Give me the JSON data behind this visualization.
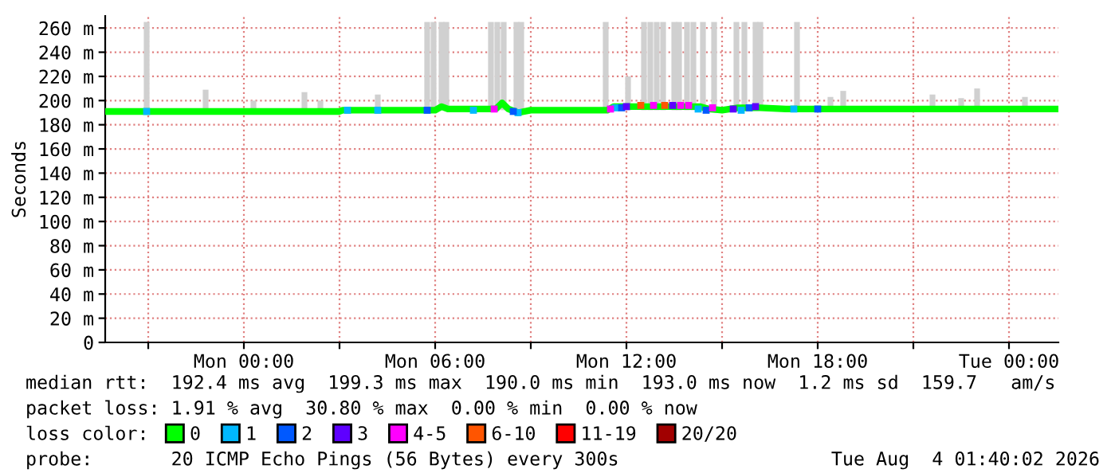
{
  "chart_data": {
    "type": "line",
    "ylabel": "Seconds",
    "xlim": [
      "2026-08-02T19:39",
      "2026-08-04T01:33"
    ],
    "ylim": [
      0,
      270
    ],
    "xticks": [
      {
        "value": "2026-08-02T21:00",
        "label": null
      },
      {
        "value": "2026-08-03T00:00",
        "label": "Mon 00:00"
      },
      {
        "value": "2026-08-03T03:00",
        "label": null
      },
      {
        "value": "2026-08-03T06:00",
        "label": "Mon 06:00"
      },
      {
        "value": "2026-08-03T09:00",
        "label": null
      },
      {
        "value": "2026-08-03T12:00",
        "label": "Mon 12:00"
      },
      {
        "value": "2026-08-03T15:00",
        "label": null
      },
      {
        "value": "2026-08-03T18:00",
        "label": "Mon 18:00"
      },
      {
        "value": "2026-08-03T21:00",
        "label": null
      },
      {
        "value": "2026-08-04T00:00",
        "label": "Tue 00:00"
      }
    ],
    "yticks": [
      {
        "value": 0,
        "label": "0"
      },
      {
        "value": 20,
        "label": "20 m"
      },
      {
        "value": 40,
        "label": "40 m"
      },
      {
        "value": 60,
        "label": "60 m"
      },
      {
        "value": 80,
        "label": "80 m"
      },
      {
        "value": 100,
        "label": "100 m"
      },
      {
        "value": 120,
        "label": "120 m"
      },
      {
        "value": 140,
        "label": "140 m"
      },
      {
        "value": 160,
        "label": "160 m"
      },
      {
        "value": 180,
        "label": "180 m"
      },
      {
        "value": 200,
        "label": "200 m"
      },
      {
        "value": 220,
        "label": "220 m"
      },
      {
        "value": 240,
        "label": "240 m"
      },
      {
        "value": 260,
        "label": "260 m"
      }
    ],
    "grid": true,
    "legend": "bottom",
    "legend_title": "loss color:",
    "series": [
      {
        "type": "bar",
        "color": "#d0d0d0",
        "x": [
          "2026-08-02T20:57",
          "2026-08-02T22:48",
          "2026-08-03T00:18",
          "2026-08-03T01:54",
          "2026-08-03T02:24",
          "2026-08-03T04:12",
          "2026-08-03T05:45",
          "2026-08-03T05:57",
          "2026-08-03T06:12",
          "2026-08-03T06:21",
          "2026-08-03T07:45",
          "2026-08-03T07:57",
          "2026-08-03T08:09",
          "2026-08-03T08:33",
          "2026-08-03T08:42",
          "2026-08-03T11:21",
          "2026-08-03T12:03",
          "2026-08-03T12:33",
          "2026-08-03T12:45",
          "2026-08-03T12:57",
          "2026-08-03T13:09",
          "2026-08-03T13:30",
          "2026-08-03T13:39",
          "2026-08-03T13:54",
          "2026-08-03T14:06",
          "2026-08-03T14:24",
          "2026-08-03T14:45",
          "2026-08-03T15:27",
          "2026-08-03T15:42",
          "2026-08-03T16:03",
          "2026-08-03T16:12",
          "2026-08-03T17:21",
          "2026-08-03T18:24",
          "2026-08-03T18:48",
          "2026-08-03T21:36",
          "2026-08-03T22:30",
          "2026-08-03T23:00",
          "2026-08-04T00:30"
        ],
        "base": [
          192,
          192,
          192,
          192,
          192,
          192,
          192,
          192,
          192,
          192,
          192,
          192,
          192,
          192,
          192,
          192,
          192,
          192,
          192,
          192,
          192,
          192,
          192,
          192,
          192,
          192,
          192,
          192,
          192,
          192,
          192,
          192,
          192,
          192,
          192,
          192,
          192,
          192
        ],
        "values": [
          73,
          17,
          8,
          15,
          8,
          13,
          73,
          73,
          73,
          73,
          73,
          73,
          73,
          73,
          73,
          73,
          28,
          73,
          73,
          73,
          73,
          73,
          73,
          73,
          73,
          73,
          73,
          73,
          73,
          73,
          73,
          73,
          11,
          16,
          13,
          10,
          18,
          11
        ]
      },
      {
        "name": "0",
        "color": "#00ff00",
        "x": [
          "2026-08-02T19:39",
          "2026-08-03T03:00",
          "2026-08-03T03:06",
          "2026-08-03T06:00",
          "2026-08-03T06:12",
          "2026-08-03T06:24",
          "2026-08-03T07:54",
          "2026-08-03T08:06",
          "2026-08-03T08:18",
          "2026-08-03T08:36",
          "2026-08-03T09:00",
          "2026-08-03T11:24",
          "2026-08-03T11:36",
          "2026-08-03T14:18",
          "2026-08-03T14:36",
          "2026-08-03T15:00",
          "2026-08-03T15:30",
          "2026-08-03T16:12",
          "2026-08-03T17:00",
          "2026-08-04T01:30"
        ],
        "values": [
          191,
          191,
          192,
          192,
          195,
          193,
          193,
          198,
          193,
          190,
          192,
          192,
          195,
          195,
          193,
          192,
          194,
          194,
          193,
          193
        ]
      },
      {
        "type": "scatter",
        "name": "1",
        "color": "#00b8ff",
        "x": [
          "2026-08-02T20:57",
          "2026-08-03T03:15",
          "2026-08-03T04:12",
          "2026-08-03T07:12",
          "2026-08-03T08:36",
          "2026-08-03T11:39",
          "2026-08-03T14:15",
          "2026-08-03T15:36",
          "2026-08-03T17:15"
        ],
        "values": [
          191,
          192,
          192,
          192,
          190,
          194,
          193,
          192,
          193
        ]
      },
      {
        "type": "scatter",
        "name": "2",
        "color": "#0059ff",
        "x": [
          "2026-08-03T05:45",
          "2026-08-03T08:27",
          "2026-08-03T11:51",
          "2026-08-03T14:30",
          "2026-08-03T15:51",
          "2026-08-03T18:00"
        ],
        "values": [
          192,
          191,
          194,
          192,
          194,
          193
        ]
      },
      {
        "type": "scatter",
        "name": "3",
        "color": "#5e00ff",
        "x": [
          "2026-08-03T12:00",
          "2026-08-03T13:27",
          "2026-08-03T15:21",
          "2026-08-03T16:03"
        ],
        "values": [
          195,
          196,
          193,
          195
        ]
      },
      {
        "type": "scatter",
        "name": "4-5",
        "color": "#ff00ff",
        "x": [
          "2026-08-03T07:51",
          "2026-08-03T11:30",
          "2026-08-03T12:51",
          "2026-08-03T13:42",
          "2026-08-03T13:57",
          "2026-08-03T14:42"
        ],
        "values": [
          193,
          193,
          196,
          196,
          196,
          194
        ]
      },
      {
        "type": "scatter",
        "name": "6-10",
        "color": "#ff5500",
        "x": [
          "2026-08-03T12:27",
          "2026-08-03T13:12"
        ],
        "values": [
          196,
          196
        ]
      },
      {
        "type": "scatter",
        "name": "11-19",
        "color": "#ff0000"
      },
      {
        "type": "scatter",
        "name": "20/20",
        "color": "#a10000"
      }
    ],
    "annotations": [
      "median rtt:  192.4 ms avg  199.3 ms max  190.0 ms min  193.0 ms now  1.2 ms sd  159.7   am/s",
      "packet loss: 1.91 % avg  30.80 % max  0.00 % min  0.00 % now",
      "probe:       20 ICMP Echo Pings (56 Bytes) every 300s",
      "Tue Aug  4 01:40:02 2026"
    ]
  }
}
